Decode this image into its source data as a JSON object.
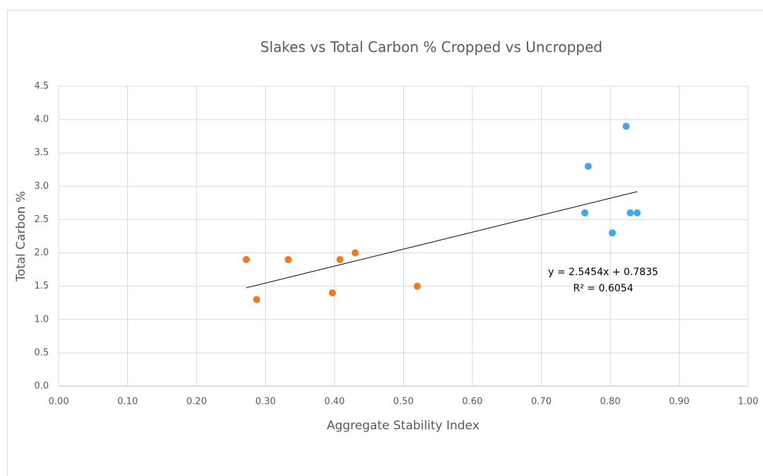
{
  "chart_data": {
    "type": "scatter",
    "title": "Slakes vs Total Carbon % Cropped vs Uncropped",
    "x_label": "Aggregate Stability Index",
    "y_label": "Total Carbon %",
    "series": [
      {
        "color": "#f07b1d",
        "x": [
          0.272,
          0.287,
          0.333,
          0.397,
          0.408,
          0.43,
          0.52
        ],
        "values": [
          1.9,
          1.3,
          1.9,
          1.4,
          1.9,
          2.0,
          1.5
        ]
      },
      {
        "color": "#3fa9ea",
        "x": [
          0.823,
          0.768,
          0.763,
          0.803,
          0.829,
          0.839
        ],
        "values": [
          3.9,
          3.3,
          2.6,
          2.3,
          2.6,
          2.6
        ]
      }
    ],
    "trendline": {
      "slope": 2.5454,
      "intercept": 0.7835,
      "r2": 0.6054,
      "label": "y = 2.5454x + 0.7835",
      "r2_label": "R² = 0.6054",
      "color": "#000000"
    },
    "xlim": [
      0,
      1
    ],
    "xticks": [
      {
        "value": 0,
        "label": "0.00"
      },
      {
        "value": 0.1,
        "label": "0.10"
      },
      {
        "value": 0.2,
        "label": "0.20"
      },
      {
        "value": 0.3,
        "label": "0.30"
      },
      {
        "value": 0.4,
        "label": "0.40"
      },
      {
        "value": 0.5,
        "label": "0.50"
      },
      {
        "value": 0.6,
        "label": "0.60"
      },
      {
        "value": 0.7,
        "label": "0.70"
      },
      {
        "value": 0.8,
        "label": "0.80"
      },
      {
        "value": 0.9,
        "label": "0.90"
      },
      {
        "value": 1,
        "label": "1.00"
      }
    ],
    "ylim": [
      0,
      4.5
    ],
    "yticks": [
      {
        "value": 0,
        "label": "0.0"
      },
      {
        "value": 0.5,
        "label": "0.5"
      },
      {
        "value": 1,
        "label": "1.0"
      },
      {
        "value": 1.5,
        "label": "1.5"
      },
      {
        "value": 2,
        "label": "2.0"
      },
      {
        "value": 2.5,
        "label": "2.5"
      },
      {
        "value": 3,
        "label": "3.0"
      },
      {
        "value": 3.5,
        "label": "3.5"
      },
      {
        "value": 4,
        "label": "4.0"
      },
      {
        "value": 4.5,
        "label": "4.5"
      }
    ],
    "grid": true
  }
}
